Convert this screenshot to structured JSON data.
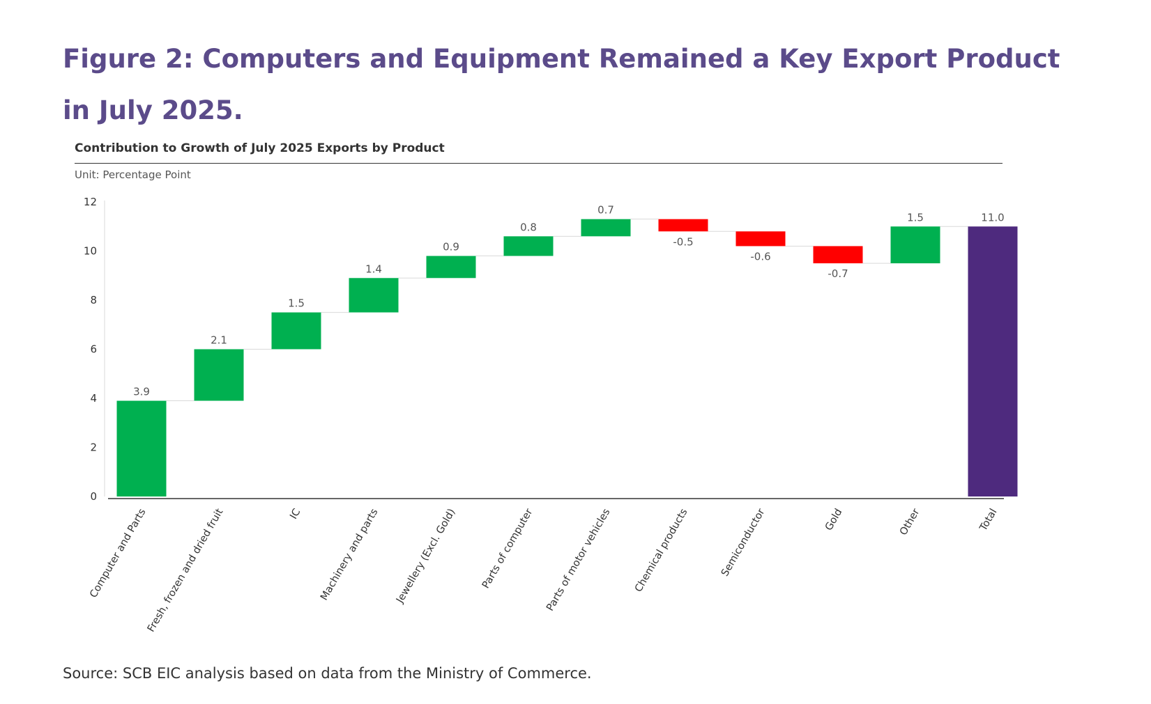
{
  "figure_title": "Figure 2: Computers and Equipment Remained a Key Export Product in July 2025.",
  "source_note": "Source: SCB EIC analysis based on data from the Ministry of Commerce.",
  "colors": {
    "title": "#5b4b8a",
    "increase": "#00b050",
    "decrease": "#ff0000",
    "total": "#4e2a7e"
  },
  "chart_data": {
    "type": "bar",
    "subtype": "waterfall",
    "title": "Contribution to Growth of July 2025 Exports by Product",
    "unit_label": "Unit: Percentage Point",
    "xlabel": "",
    "ylabel": "",
    "ylim": [
      0,
      12
    ],
    "yticks": [
      0,
      2,
      4,
      6,
      8,
      10,
      12
    ],
    "grid": false,
    "categories": [
      "Computer and Parts",
      "Fresh, frozen and dried fruit",
      "IC",
      "Machinery and parts",
      "Jewellery (Excl. Gold)",
      "Parts  of computer",
      "Parts of motor vehicles",
      "Chemical products",
      "Semiconductor",
      "Gold",
      "Other",
      "Total"
    ],
    "values": [
      3.9,
      2.1,
      1.5,
      1.4,
      0.9,
      0.8,
      0.7,
      -0.5,
      -0.6,
      -0.7,
      1.5,
      11.0
    ],
    "labels": [
      "3.9",
      "2.1",
      "1.5",
      "1.4",
      "0.9",
      "0.8",
      "0.7",
      "-0.5",
      "-0.6",
      "-0.7",
      "1.5",
      "11.0"
    ],
    "bar_kind": [
      "increase",
      "increase",
      "increase",
      "increase",
      "increase",
      "increase",
      "increase",
      "decrease",
      "decrease",
      "decrease",
      "increase",
      "total"
    ]
  }
}
